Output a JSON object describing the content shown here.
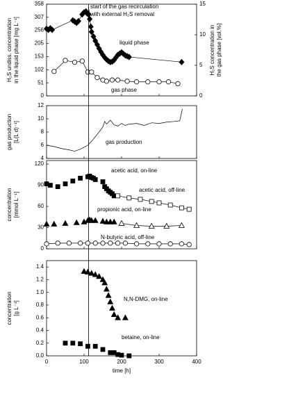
{
  "chart_data": [
    {
      "type": "scatter",
      "vline": 112,
      "ylabel": [
        "H₂S undiss. concentration",
        "in the liquid phase [mg L⁻¹]"
      ],
      "y2label": [
        "H₂S concentration in",
        "the gas phase [vol.%]"
      ],
      "xlim": [
        0,
        400
      ],
      "xticks": [
        0,
        100,
        200,
        300,
        400
      ],
      "xtick_labels": false,
      "ylim": [
        0,
        358
      ],
      "yticks": [
        0,
        51,
        102,
        153,
        205,
        256,
        307,
        358
      ],
      "y2lim": [
        0,
        15
      ],
      "y2ticks": [
        0,
        5,
        10,
        15
      ],
      "annotations": [
        "start of the gas recirculation",
        "with external H₂S removal",
        "liquid phase",
        "gas phase"
      ],
      "series": [
        {
          "name": "liquid phase",
          "color": "#000",
          "marker": "diamond",
          "line": true,
          "x": [
            0,
            5,
            10,
            15,
            70,
            75,
            80,
            85,
            95,
            100,
            105,
            108,
            112,
            115,
            118,
            120,
            125,
            130,
            135,
            140,
            145,
            150,
            155,
            160,
            165,
            170,
            175,
            180,
            185,
            190,
            195,
            200,
            205,
            210,
            215,
            220,
            360
          ],
          "values": [
            262,
            258,
            264,
            258,
            295,
            290,
            285,
            292,
            318,
            326,
            330,
            322,
            318,
            300,
            270,
            250,
            232,
            215,
            200,
            185,
            172,
            160,
            150,
            142,
            136,
            132,
            134,
            140,
            150,
            160,
            165,
            170,
            164,
            158,
            155,
            152,
            132
          ]
        },
        {
          "name": "gas phase",
          "color": "#000",
          "marker": "circle-open",
          "line": true,
          "axis": "y2",
          "x": [
            20,
            50,
            75,
            95,
            110,
            120,
            135,
            150,
            160,
            175,
            190,
            215,
            240,
            270,
            300,
            325,
            350
          ],
          "values": [
            4.0,
            5.8,
            5.5,
            5.7,
            3.9,
            3.9,
            3.0,
            2.6,
            2.4,
            2.6,
            2.6,
            2.4,
            2.3,
            2.3,
            2.3,
            2.3,
            2.0
          ]
        }
      ]
    },
    {
      "type": "line",
      "ylabel": [
        "gas production",
        "[L(L d)⁻¹]"
      ],
      "xlim": [
        0,
        400
      ],
      "xticks": [
        0,
        100,
        200,
        300,
        400
      ],
      "xtick_labels": false,
      "ylim": [
        4,
        12
      ],
      "yticks": [
        4,
        6,
        8,
        10,
        12
      ],
      "annotations": [
        "gas production"
      ],
      "series": [
        {
          "name": "gas production",
          "color": "#000",
          "x": [
            0,
            20,
            40,
            60,
            75,
            90,
            100,
            110,
            120,
            130,
            140,
            150,
            155,
            160,
            170,
            180,
            190,
            200,
            210,
            220,
            240,
            260,
            280,
            300,
            320,
            340,
            355,
            362
          ],
          "values": [
            6.0,
            5.8,
            5.5,
            5.3,
            5.1,
            5.4,
            5.7,
            6.0,
            6.6,
            7.3,
            8.0,
            8.8,
            9.6,
            9.2,
            9.8,
            9.1,
            8.9,
            9.3,
            9.0,
            9.2,
            9.3,
            9.0,
            9.4,
            9.3,
            9.5,
            9.6,
            9.7,
            11.5
          ]
        }
      ]
    },
    {
      "type": "scatter",
      "ylabel": [
        "concentration",
        "[mmol L⁻¹]"
      ],
      "xlim": [
        0,
        400
      ],
      "xticks": [
        0,
        100,
        200,
        300,
        400
      ],
      "xtick_labels": false,
      "ylim": [
        0,
        125
      ],
      "yticks": [
        0,
        30,
        60,
        90,
        120
      ],
      "annotations": [
        "acetic acid, on-line",
        "acetic acid, off-line",
        "propionic acid, on-line",
        "N-butyric acid, off-line"
      ],
      "series": [
        {
          "name": "acetic acid, on-line",
          "color": "#000",
          "marker": "square",
          "line": false,
          "x": [
            0,
            10,
            30,
            50,
            70,
            90,
            110,
            115,
            120,
            125,
            130,
            150,
            155,
            160,
            165,
            170,
            175,
            180
          ],
          "values": [
            92,
            90,
            88,
            92,
            96,
            100,
            102,
            103,
            101,
            100,
            98,
            95,
            88,
            85,
            82,
            80,
            78,
            75
          ]
        },
        {
          "name": "acetic acid, off-line",
          "color": "#000",
          "marker": "square-open",
          "line": true,
          "x": [
            190,
            220,
            250,
            280,
            300,
            330,
            360,
            380
          ],
          "values": [
            75,
            72,
            70,
            67,
            65,
            62,
            58,
            56
          ]
        },
        {
          "name": "propionic acid, on-line",
          "color": "#000",
          "marker": "triangle",
          "line": false,
          "x": [
            0,
            20,
            50,
            80,
            100,
            110,
            115,
            120,
            130,
            150,
            160,
            170,
            180
          ],
          "values": [
            35,
            35,
            36,
            37,
            38,
            40,
            41,
            40,
            40,
            39,
            38,
            38,
            38
          ]
        },
        {
          "color": "#000",
          "marker": "triangle-open",
          "line": true,
          "x": [
            200,
            240,
            280,
            320,
            360
          ],
          "values": [
            36,
            33,
            32,
            32,
            33
          ]
        },
        {
          "name": "N-butyric acid, off-line",
          "color": "#000",
          "marker": "circle-open",
          "line": true,
          "x": [
            0,
            30,
            60,
            90,
            110,
            130,
            150,
            170,
            190,
            210,
            240,
            270,
            300,
            330,
            360,
            380
          ],
          "values": [
            7,
            8,
            8,
            8,
            8,
            8,
            8,
            8,
            8,
            8,
            7,
            7,
            7,
            7,
            7,
            6
          ]
        }
      ]
    },
    {
      "type": "scatter",
      "ylabel": [
        "concentration",
        "[g L⁻¹]"
      ],
      "xlabel": "time [h]",
      "xlim": [
        0,
        400
      ],
      "xticks": [
        0,
        100,
        200,
        300,
        400
      ],
      "ylim": [
        0,
        1.5
      ],
      "yticks": [
        {
          "value": 0,
          "label": "0.0"
        },
        0.2,
        0.4,
        0.6,
        0.8,
        {
          "value": 1,
          "label": "1.0"
        },
        1.2,
        1.4
      ],
      "annotations": [
        "N,N-DMG, on-line",
        "betaine, on-line"
      ],
      "series": [
        {
          "name": "N,N-DMG, on-line",
          "color": "#000",
          "marker": "triangle",
          "line": false,
          "x": [
            100,
            110,
            120,
            130,
            140,
            150,
            155,
            160,
            165,
            170,
            175,
            180,
            190,
            210
          ],
          "values": [
            1.33,
            1.32,
            1.3,
            1.28,
            1.25,
            1.2,
            1.15,
            1.05,
            0.95,
            0.85,
            0.75,
            0.65,
            0.6,
            0.6
          ]
        },
        {
          "name": "betaine, on-line",
          "color": "#000",
          "marker": "square",
          "line": false,
          "x": [
            50,
            70,
            90,
            110,
            130,
            150,
            170,
            180,
            190,
            200,
            220
          ],
          "values": [
            0.2,
            0.2,
            0.19,
            0.15,
            0.15,
            0.1,
            0.05,
            0.05,
            0.02,
            0.01,
            0.0
          ]
        }
      ]
    }
  ]
}
